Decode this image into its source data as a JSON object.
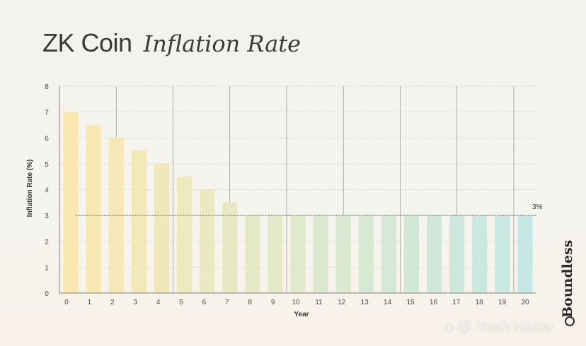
{
  "title": {
    "main": "ZK Coin",
    "italic": "Inflation Rate"
  },
  "chart_data": {
    "type": "bar",
    "xlabel": "Year",
    "ylabel": "Inflation Rate (%)",
    "ylim": [
      0,
      8
    ],
    "yticks": [
      0,
      1,
      2,
      3,
      4,
      5,
      6,
      7,
      8
    ],
    "categories": [
      "0",
      "1",
      "2",
      "3",
      "4",
      "5",
      "6",
      "7",
      "8",
      "9",
      "10",
      "11",
      "12",
      "13",
      "14",
      "15",
      "16",
      "17",
      "18",
      "19",
      "20"
    ],
    "values": [
      7,
      6.5,
      6,
      5.5,
      5,
      4.5,
      4,
      3.5,
      3,
      3,
      3,
      3,
      3,
      3,
      3,
      3,
      3,
      3,
      3,
      3,
      3
    ],
    "reference_line": {
      "value": 3,
      "label": "3%",
      "style": "dotted"
    },
    "grid": "horizontal dotted",
    "colors": {
      "start": "#fbe8b0",
      "mid": "#e0e9cc",
      "end": "#c6e8e4"
    }
  },
  "brand": {
    "name": "Boundless"
  },
  "watermark": {
    "icon": "binance-icon",
    "text": "@ Noah Mateo"
  }
}
